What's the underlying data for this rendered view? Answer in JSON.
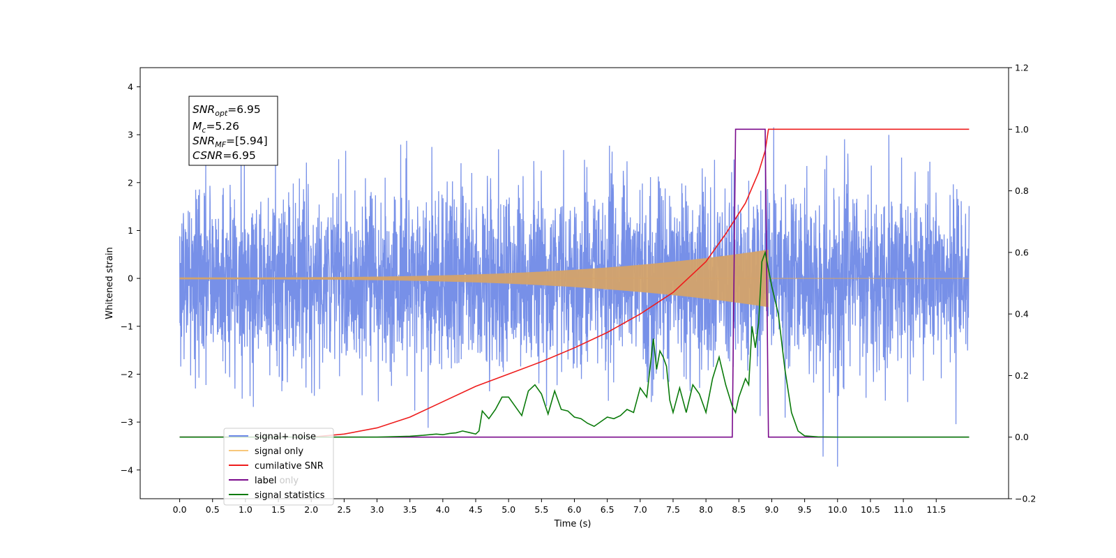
{
  "chart_data": {
    "type": "line",
    "xlabel": "Time (s)",
    "ylabel": "Whitened strain",
    "xlim": [
      -0.6,
      12.6
    ],
    "ylim": [
      -4.6,
      4.4
    ],
    "y2lim": [
      -0.2,
      1.2
    ],
    "x_ticks": [
      0.0,
      0.5,
      1.0,
      1.5,
      2.0,
      2.5,
      3.0,
      3.5,
      4.0,
      4.5,
      5.0,
      5.5,
      6.0,
      6.5,
      7.0,
      7.5,
      8.0,
      8.5,
      9.0,
      9.5,
      10.0,
      10.5,
      11.0,
      11.5
    ],
    "x_tick_labels": [
      "0.0",
      "0.5",
      "1.0",
      "1.5",
      "2.0",
      "2.5",
      "3.0",
      "3.5",
      "4.0",
      "4.5",
      "5.0",
      "5.5",
      "6.0",
      "6.5",
      "7.0",
      "7.5",
      "8.0",
      "8.5",
      "9.0",
      "9.5",
      "10.0",
      "10.5",
      "11.0",
      "11.5"
    ],
    "y_ticks": [
      -4,
      -3,
      -2,
      -1,
      0,
      1,
      2,
      3,
      4
    ],
    "y_tick_labels": [
      "−4",
      "−3",
      "−2",
      "−1",
      "0",
      "1",
      "2",
      "3",
      "4"
    ],
    "y2_ticks": [
      -0.2,
      0.0,
      0.2,
      0.4,
      0.6,
      0.8,
      1.0,
      1.2
    ],
    "y2_tick_labels": [
      "−0.2",
      "0.0",
      "0.2",
      "0.4",
      "0.6",
      "0.8",
      "1.0",
      "1.2"
    ],
    "grid": false,
    "legend_position": "bottom-left",
    "series": [
      {
        "name": "signal+ noise",
        "color": "#6b87e6",
        "axis": "left",
        "kind": "noise",
        "x_range": [
          0.0,
          12.0
        ],
        "std": 0.95,
        "peak": 4.0
      },
      {
        "name": "signal only",
        "color": "#d4a36a",
        "axis": "left",
        "kind": "chirp",
        "x_range": [
          0.0,
          8.95
        ],
        "amplitude_start": 0.02,
        "amplitude_end": 0.6
      },
      {
        "name": "cumilative SNR",
        "color": "#ee1c1c",
        "axis": "right",
        "x": [
          0.0,
          2.0,
          2.5,
          3.0,
          3.5,
          4.0,
          4.5,
          5.0,
          5.5,
          6.0,
          6.5,
          7.0,
          7.5,
          8.0,
          8.3,
          8.6,
          8.8,
          8.9,
          8.95,
          12.0
        ],
        "y": [
          0.0,
          0.0,
          0.01,
          0.03,
          0.065,
          0.115,
          0.165,
          0.205,
          0.245,
          0.29,
          0.34,
          0.4,
          0.47,
          0.57,
          0.66,
          0.76,
          0.86,
          0.93,
          1.0,
          1.0
        ]
      },
      {
        "name": "label",
        "color": "#7a0a8c",
        "axis": "right",
        "x": [
          0.0,
          8.4,
          8.45,
          8.9,
          8.95,
          12.0
        ],
        "y": [
          0.0,
          0.0,
          1.0,
          1.0,
          0.0,
          0.0
        ]
      },
      {
        "name": "label only",
        "color": "#c8c8c8",
        "axis": "right",
        "x": [],
        "y": []
      },
      {
        "name": "signal statistics",
        "color": "#0a7a0a",
        "axis": "right",
        "x": [
          0.0,
          3.0,
          3.5,
          3.7,
          3.9,
          4.0,
          4.1,
          4.2,
          4.3,
          4.4,
          4.5,
          4.55,
          4.6,
          4.7,
          4.8,
          4.9,
          5.0,
          5.1,
          5.2,
          5.3,
          5.4,
          5.5,
          5.6,
          5.7,
          5.8,
          5.9,
          6.0,
          6.1,
          6.2,
          6.3,
          6.4,
          6.5,
          6.6,
          6.7,
          6.8,
          6.9,
          7.0,
          7.1,
          7.2,
          7.25,
          7.3,
          7.35,
          7.4,
          7.45,
          7.5,
          7.6,
          7.7,
          7.8,
          7.9,
          8.0,
          8.1,
          8.2,
          8.3,
          8.4,
          8.45,
          8.5,
          8.6,
          8.65,
          8.7,
          8.75,
          8.8,
          8.85,
          8.9,
          9.0,
          9.1,
          9.2,
          9.3,
          9.4,
          9.5,
          9.7,
          10.0,
          12.0
        ],
        "y": [
          0.0,
          0.0,
          0.003,
          0.006,
          0.01,
          0.008,
          0.012,
          0.014,
          0.02,
          0.015,
          0.01,
          0.02,
          0.085,
          0.06,
          0.09,
          0.13,
          0.13,
          0.1,
          0.07,
          0.15,
          0.17,
          0.14,
          0.075,
          0.15,
          0.09,
          0.085,
          0.065,
          0.06,
          0.045,
          0.035,
          0.05,
          0.065,
          0.06,
          0.07,
          0.09,
          0.08,
          0.16,
          0.13,
          0.32,
          0.22,
          0.28,
          0.26,
          0.23,
          0.12,
          0.08,
          0.16,
          0.08,
          0.17,
          0.14,
          0.08,
          0.19,
          0.26,
          0.17,
          0.1,
          0.08,
          0.13,
          0.19,
          0.17,
          0.36,
          0.29,
          0.37,
          0.57,
          0.6,
          0.49,
          0.4,
          0.22,
          0.08,
          0.02,
          0.004,
          0.001,
          0.0,
          0.0
        ]
      }
    ],
    "annotation": {
      "lines": [
        {
          "base": "SNR",
          "sub": "opt",
          "value": "=6.95"
        },
        {
          "base": "M",
          "sub": "c",
          "value": "=5.26"
        },
        {
          "base": "SNR",
          "sub": "MF",
          "value": "=[5.94]"
        },
        {
          "base": "CSNR",
          "sub": "",
          "value": "=6.95"
        }
      ]
    }
  }
}
